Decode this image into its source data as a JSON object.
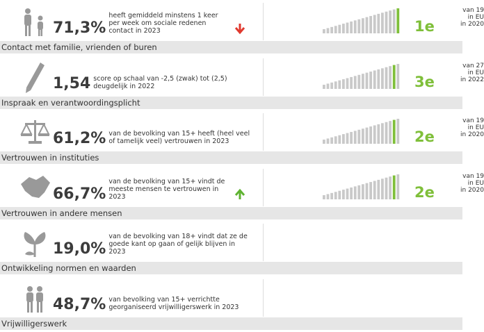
{
  "rows": [
    {
      "label": "Contact met familie, vrienden of buren",
      "value": "71,3%",
      "description": [
        "heeft gemiddeld minstens 1 keer",
        "per week om sociale redenen",
        "contact in 2023"
      ],
      "trend": "down",
      "rank": "1e",
      "comparison": [
        "van 19",
        "in EU",
        "in 2020"
      ]
    },
    {
      "label": "Inspraak en verantwoordingsplicht",
      "value": "1,54",
      "description": [
        "score op schaal van -2,5 (zwak) tot (2,5)",
        "deugdelijk in 2022"
      ],
      "rank": "3e",
      "comparison": [
        "van 27",
        "in EU",
        "in 2022"
      ]
    },
    {
      "label": "Vertrouwen in instituties",
      "value": "61,2%",
      "description": [
        "van de bevolking van 15+ heeft (heel veel",
        "of tamelijk veel) vertrouwen in 2023"
      ],
      "rank": "2e",
      "comparison": [
        "van 19",
        "in EU",
        "in 2020"
      ]
    },
    {
      "label": "Vertrouwen in andere mensen",
      "value": "66,7%",
      "description": [
        "van de bevolking van 15+ vindt de",
        "meeste mensen te vertrouwen in",
        "2023"
      ],
      "trend": "up",
      "rank": "2e",
      "comparison": [
        "van 19",
        "in EU",
        "in 2020"
      ]
    },
    {
      "label": "Ontwikkeling normen en waarden",
      "value": "19,0%",
      "description": [
        "van de bevolking van 18+ vindt dat ze de",
        "goede kant op gaan of gelijk blijven in",
        "2023"
      ]
    },
    {
      "label": "Vrijwilligerswerk",
      "value": "48,7%",
      "description": [
        "van bevolking van 15+ verrichtte",
        "georganiseerd vrijwilligerswerk in 2023"
      ]
    }
  ]
}
